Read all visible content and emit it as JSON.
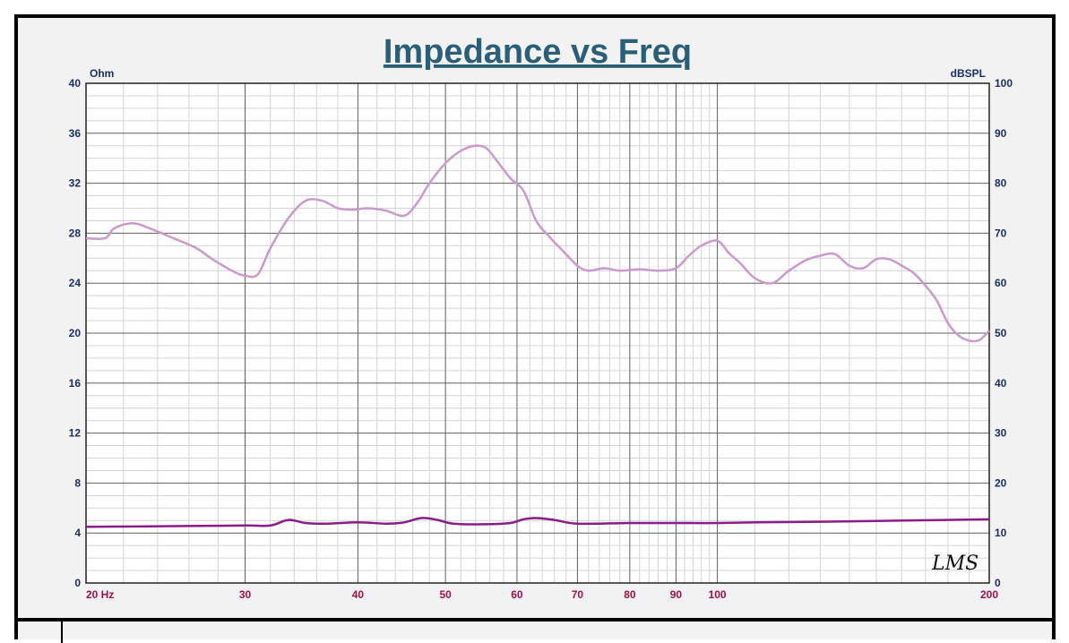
{
  "chart_data": {
    "type": "line",
    "title": "Impedance vs Freq",
    "x_scale": "log",
    "xlim": [
      20,
      200
    ],
    "x_ticks": [
      20,
      30,
      40,
      50,
      60,
      70,
      80,
      90,
      100,
      200
    ],
    "x_tick_labels": [
      "20  Hz",
      "30",
      "40",
      "50",
      "60",
      "70",
      "80",
      "90",
      "100",
      "200"
    ],
    "left_axis": {
      "unit": "Ohm",
      "ylim": [
        0,
        40
      ],
      "ticks": [
        "0",
        "4",
        "8",
        "12",
        "16",
        "20",
        "24",
        "28",
        "32",
        "36",
        "40"
      ]
    },
    "right_axis": {
      "unit": "dBSPL",
      "ylim": [
        0,
        100
      ],
      "ticks": [
        "0",
        "10",
        "20",
        "30",
        "40",
        "50",
        "60",
        "70",
        "80",
        "90",
        "100"
      ]
    },
    "grid": true,
    "series": [
      {
        "axis": "right",
        "color": "#c99acb",
        "x": [
          20,
          21,
          21.5,
          22.5,
          23.5,
          25,
          26.5,
          27.5,
          29,
          30,
          31,
          32,
          33.5,
          35,
          36.5,
          38,
          39.5,
          41,
          43,
          45,
          46.5,
          48,
          50,
          52,
          54,
          55.5,
          57,
          59,
          61,
          63,
          65,
          67,
          70,
          72,
          75,
          78,
          82,
          86,
          90,
          93,
          96,
          100,
          103,
          106,
          110,
          115,
          120,
          125,
          130,
          135,
          140,
          145,
          150,
          155,
          160,
          165,
          170,
          175,
          180,
          185,
          190,
          195,
          200
        ],
        "y": [
          69,
          69,
          71,
          72,
          71,
          69,
          67,
          65,
          62.5,
          61.5,
          61.8,
          67,
          73,
          76.5,
          76.5,
          75,
          74.7,
          75,
          74.5,
          73.5,
          76,
          80,
          84,
          86.5,
          87.5,
          87,
          84.5,
          81,
          78.5,
          72.5,
          69.5,
          67,
          63.5,
          62.5,
          63,
          62.5,
          62.8,
          62.5,
          63,
          65.5,
          67.5,
          68.5,
          66,
          64,
          61,
          60,
          62.5,
          64.5,
          65.5,
          65.8,
          63.5,
          63,
          64.8,
          64.8,
          63.5,
          62,
          59.5,
          56.5,
          52,
          49.5,
          48.5,
          48.6,
          50.5
        ]
      },
      {
        "axis": "left",
        "color": "#8b1a8b",
        "x": [
          20,
          25,
          30,
          32,
          33.5,
          35,
          37,
          40,
          43,
          45,
          47,
          49,
          51,
          55,
          59,
          61,
          63,
          66,
          70,
          80,
          90,
          100,
          110,
          130,
          160,
          200
        ],
        "y": [
          4.5,
          4.55,
          4.6,
          4.6,
          5.05,
          4.8,
          4.75,
          4.85,
          4.75,
          4.85,
          5.2,
          5.05,
          4.75,
          4.7,
          4.8,
          5.1,
          5.2,
          5.05,
          4.75,
          4.8,
          4.8,
          4.8,
          4.85,
          4.9,
          5.0,
          5.1
        ]
      }
    ]
  },
  "logo_text": "LMS"
}
